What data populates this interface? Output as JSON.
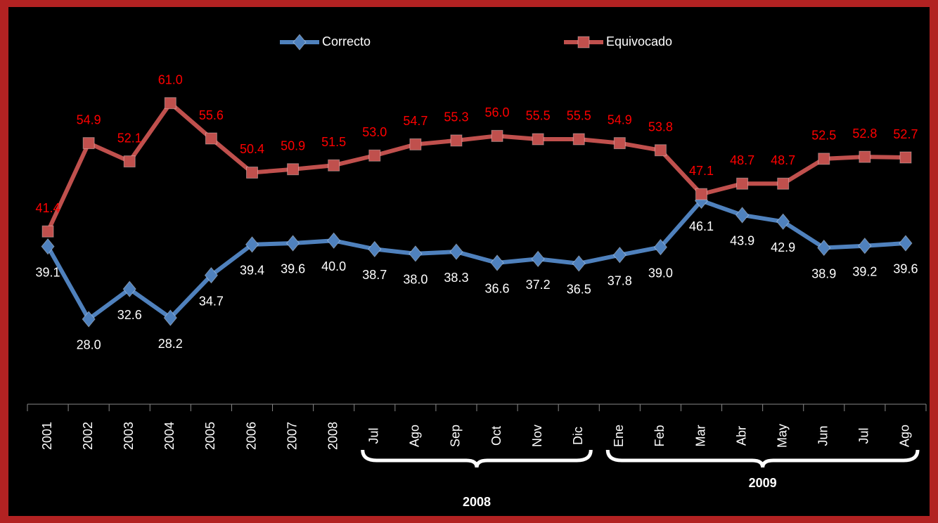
{
  "chart_data": {
    "type": "line",
    "categories": [
      "2001",
      "2002",
      "2003",
      "2004",
      "2005",
      "2006",
      "2007",
      "2008",
      "Jul",
      "Ago",
      "Sep",
      "Oct",
      "Nov",
      "Dic",
      "Ene",
      "Feb",
      "Mar",
      "Abr",
      "May",
      "Jun",
      "Jul",
      "Ago"
    ],
    "groups": [
      "2008",
      "2009"
    ],
    "series": [
      {
        "name": "Correcto",
        "color": "#4f81bd",
        "marker": "diamond",
        "label_color": "#ffffff",
        "values": [
          39.1,
          28.0,
          32.6,
          28.2,
          34.7,
          39.4,
          39.6,
          40.0,
          38.7,
          38.0,
          38.3,
          36.6,
          37.2,
          36.5,
          37.8,
          39.0,
          46.1,
          43.9,
          42.9,
          38.9,
          39.2,
          39.6
        ],
        "value_labels": [
          "39.1",
          "28.0",
          "32.6",
          "28.2",
          "34.7",
          "39.4",
          "39.6",
          "40.0",
          "38.7",
          "38.0",
          "38.3",
          "36.6",
          "37.2",
          "36.5",
          "37.8",
          "39.0",
          "46.1",
          "43.9",
          "42.9",
          "38.9",
          "39.2",
          "39.6"
        ]
      },
      {
        "name": "Equivocado",
        "color": "#c0504d",
        "marker": "square",
        "label_color": "#ff0000",
        "values": [
          41.4,
          54.9,
          52.1,
          61.0,
          55.6,
          50.4,
          50.9,
          51.5,
          53.0,
          54.7,
          55.3,
          56.0,
          55.5,
          55.5,
          54.9,
          53.8,
          47.1,
          48.7,
          48.7,
          52.5,
          52.8,
          52.7
        ],
        "value_labels": [
          "41.4",
          "54.9",
          "52.1",
          "61.0",
          "55.6",
          "50.4",
          "50.9",
          "51.5",
          "53.0",
          "54.7",
          "55.3",
          "56.0",
          "55.5",
          "55.5",
          "54.9",
          "53.8",
          "47.1",
          "48.7",
          "48.7",
          "52.5",
          "52.8",
          "52.7"
        ]
      }
    ],
    "ylim": [
      15,
      70
    ],
    "legend": "top"
  }
}
